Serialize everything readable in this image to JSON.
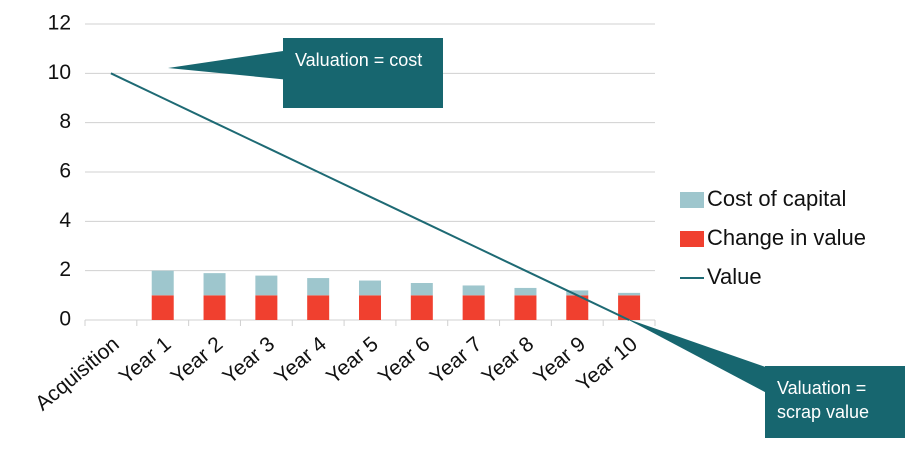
{
  "chart_data": {
    "type": "bar+line",
    "categories": [
      "Acquisition",
      "Year 1",
      "Year 2",
      "Year 3",
      "Year 4",
      "Year 5",
      "Year 6",
      "Year 7",
      "Year 8",
      "Year 9",
      "Year 10"
    ],
    "series": [
      {
        "name": "Cost of capital",
        "type": "bar",
        "color": "#9ec6cd",
        "values": [
          null,
          1.0,
          0.9,
          0.8,
          0.7,
          0.6,
          0.5,
          0.4,
          0.3,
          0.2,
          0.1
        ]
      },
      {
        "name": "Change in value",
        "type": "bar",
        "color": "#f0402f",
        "values": [
          null,
          1,
          1,
          1,
          1,
          1,
          1,
          1,
          1,
          1,
          1
        ]
      },
      {
        "name": "Value",
        "type": "line",
        "color": "#1e6a74",
        "values": [
          10,
          9,
          8,
          7,
          6,
          5,
          4,
          3,
          2,
          1,
          0
        ]
      }
    ],
    "stacked": true,
    "ylim": [
      0,
      12
    ],
    "yticks": [
      0,
      2,
      4,
      6,
      8,
      10,
      12
    ],
    "grid": true,
    "legend": "right",
    "annotations": [
      "Valuation = cost",
      "Valuation = scrap value"
    ]
  }
}
